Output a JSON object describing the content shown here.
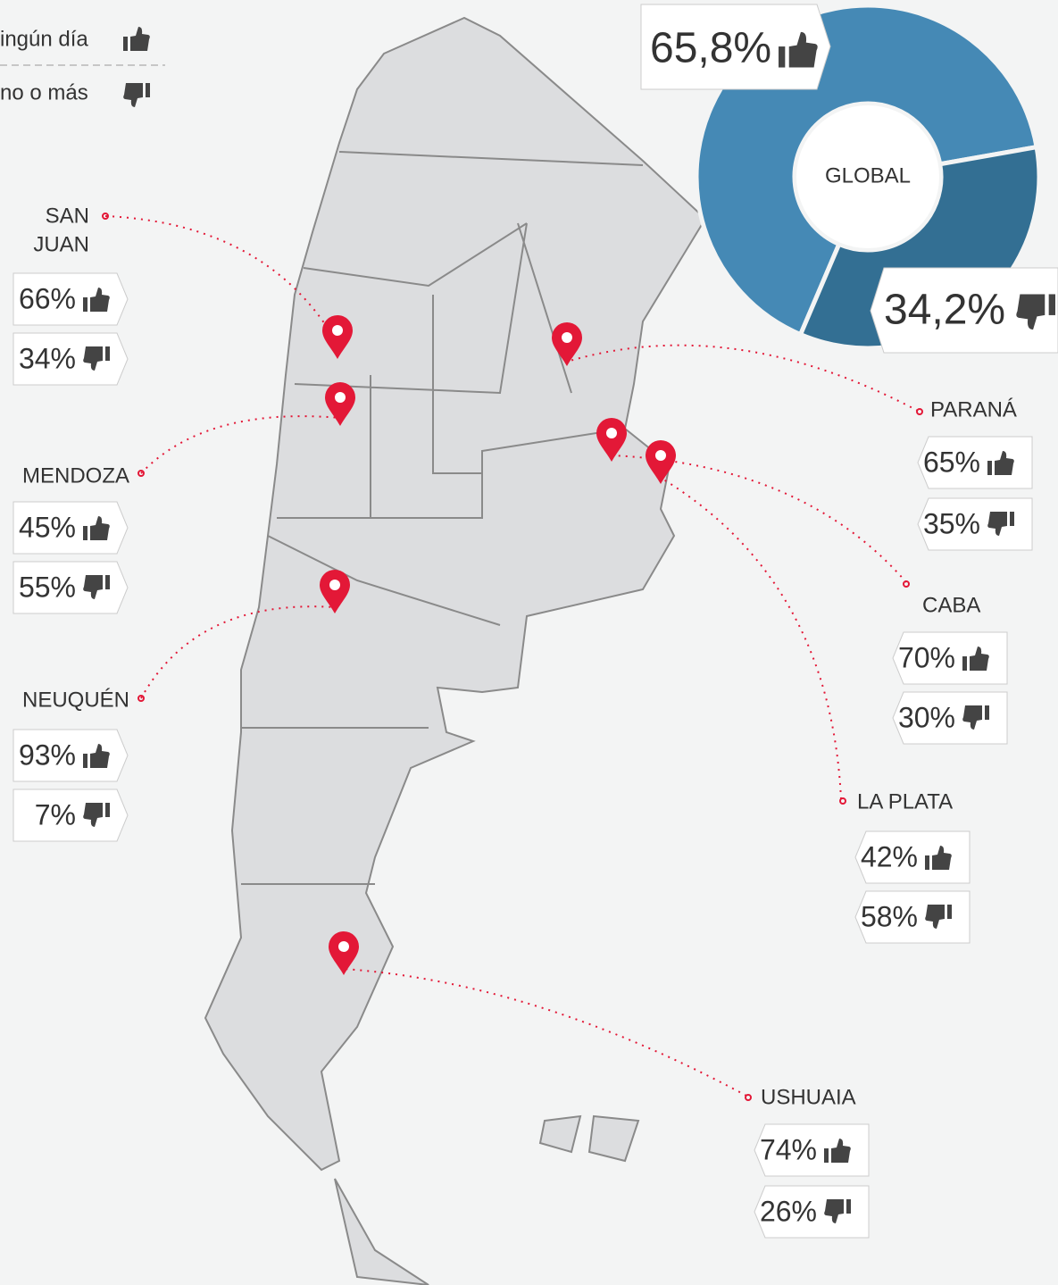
{
  "legend": {
    "positive": "ingún día",
    "negative": "no o más"
  },
  "chart_data": {
    "type": "pie",
    "values": [
      65.8,
      34.2
    ],
    "value_labels": [
      "65,8%",
      "34,2%"
    ],
    "colors": [
      "#4589b5",
      "#336f93"
    ],
    "center_label": "GLOBAL"
  },
  "cities": [
    {
      "name": [
        "SAN",
        "JUAN"
      ],
      "positive": "66%",
      "negative": "34%"
    },
    {
      "name": [
        "MENDOZA"
      ],
      "positive": "45%",
      "negative": "55%"
    },
    {
      "name": [
        "NEUQUÉN"
      ],
      "positive": "93%",
      "negative": "7%"
    },
    {
      "name": [
        "PARANÁ"
      ],
      "positive": "65%",
      "negative": "35%"
    },
    {
      "name": [
        "CABA"
      ],
      "positive": "70%",
      "negative": "30%"
    },
    {
      "name": [
        "LA PLATA"
      ],
      "positive": "42%",
      "negative": "58%"
    },
    {
      "name": [
        "USHUAIA"
      ],
      "positive": "74%",
      "negative": "26%"
    }
  ]
}
